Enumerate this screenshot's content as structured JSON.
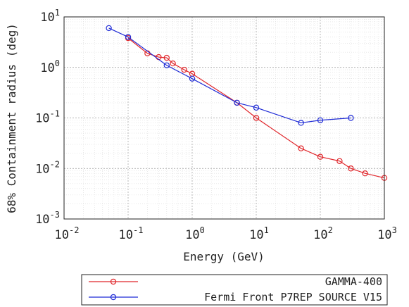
{
  "chart_data": {
    "type": "line",
    "xlabel": "Energy (GeV)",
    "ylabel": "68% Containment radius (deg)",
    "xscale": "log",
    "yscale": "log",
    "xlim": [
      0.01,
      1000
    ],
    "ylim": [
      0.001,
      10
    ],
    "grid": "major and minor",
    "legend_position": "bottom-center below plot",
    "x_ticks": [
      {
        "base": "10",
        "exp": "-2"
      },
      {
        "base": "10",
        "exp": "-1"
      },
      {
        "base": "10",
        "exp": "0"
      },
      {
        "base": "10",
        "exp": "1"
      },
      {
        "base": "10",
        "exp": "2"
      },
      {
        "base": "10",
        "exp": "3"
      }
    ],
    "y_ticks": [
      {
        "base": "10",
        "exp": "-3"
      },
      {
        "base": "10",
        "exp": "-2"
      },
      {
        "base": "10",
        "exp": "-1"
      },
      {
        "base": "10",
        "exp": "0"
      },
      {
        "base": "10",
        "exp": "1"
      }
    ],
    "series": [
      {
        "name": "GAMMA-400",
        "color": "#e0262b",
        "x": [
          0.1,
          0.2,
          0.3,
          0.4,
          0.5,
          0.75,
          1,
          5,
          10,
          50,
          100,
          200,
          300,
          500,
          1000
        ],
        "y": [
          3.8,
          1.9,
          1.6,
          1.55,
          1.2,
          0.9,
          0.75,
          0.2,
          0.1,
          0.025,
          0.017,
          0.014,
          0.01,
          0.008,
          0.0065
        ]
      },
      {
        "name": "Fermi Front P7REP SOURCE V15",
        "color": "#1f2bd6",
        "x": [
          0.05,
          0.1,
          0.4,
          1,
          5,
          10,
          50,
          100,
          300
        ],
        "y": [
          6,
          4,
          1.1,
          0.6,
          0.2,
          0.16,
          0.08,
          0.09,
          0.1
        ]
      }
    ]
  }
}
